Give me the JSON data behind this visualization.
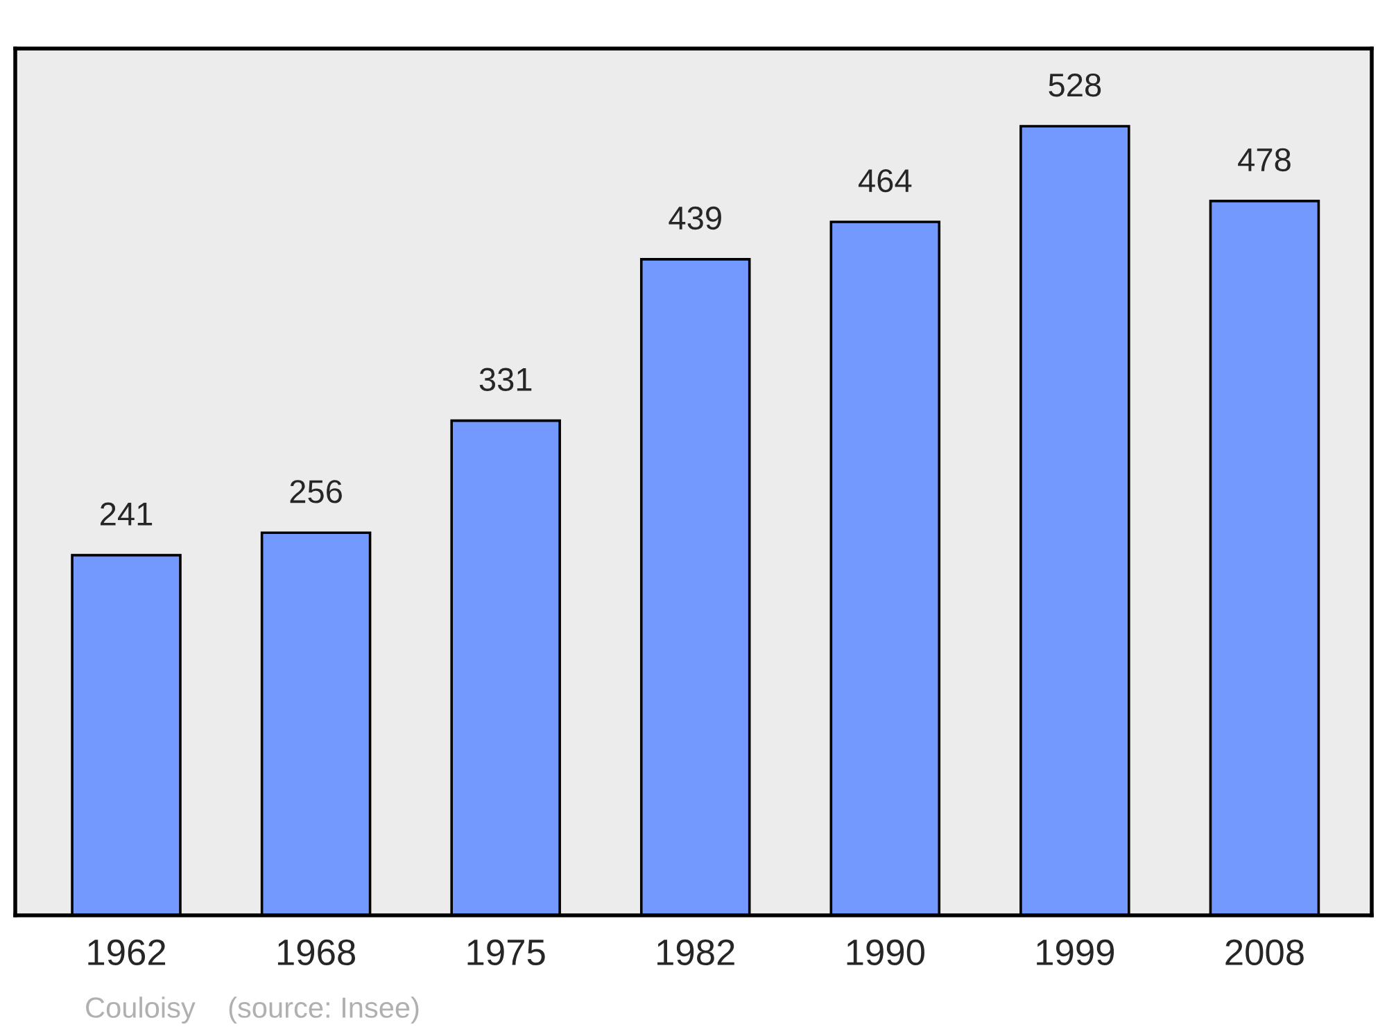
{
  "chart_data": {
    "type": "bar",
    "categories": [
      "1962",
      "1968",
      "1975",
      "1982",
      "1990",
      "1999",
      "2008"
    ],
    "values": [
      241,
      256,
      331,
      439,
      464,
      528,
      478
    ],
    "color": "#7399ff",
    "ylim": [
      0,
      580
    ],
    "data_labels": true,
    "grid": false,
    "annotations": [
      "Couloisy    (source: Insee)"
    ]
  }
}
